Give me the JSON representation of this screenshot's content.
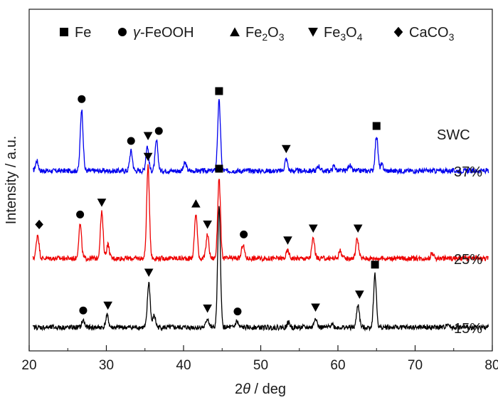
{
  "chart_data": {
    "type": "line",
    "title": "",
    "xlabel": "2θ / deg",
    "ylabel": "Intensity / a.u.",
    "xlim": [
      20,
      80
    ],
    "xticks": [
      "20",
      "30",
      "40",
      "50",
      "60",
      "70",
      "80"
    ],
    "grid": false,
    "legend_position": "top",
    "legend": [
      {
        "marker": "square",
        "label": "Fe"
      },
      {
        "marker": "circle",
        "label": "γ-FeOOH"
      },
      {
        "marker": "triangle-up",
        "label": "Fe2O3"
      },
      {
        "marker": "triangle-down",
        "label": "Fe3O4"
      },
      {
        "marker": "diamond",
        "label": "CaCO3"
      }
    ],
    "annotation": "SWC",
    "series": [
      {
        "name": "37%",
        "color": "#0000ee",
        "baseline": 0,
        "peaks": [
          [
            21.0,
            0.1
          ],
          [
            26.8,
            0.62
          ],
          [
            33.2,
            0.2
          ],
          [
            35.3,
            0.25
          ],
          [
            36.5,
            0.3
          ],
          [
            40.2,
            0.08
          ],
          [
            44.6,
            0.7
          ],
          [
            53.3,
            0.12
          ],
          [
            57.5,
            0.05
          ],
          [
            59.5,
            0.05
          ],
          [
            61.5,
            0.06
          ],
          [
            65.0,
            0.35
          ],
          [
            65.7,
            0.06
          ]
        ]
      },
      {
        "name": "25%",
        "color": "#ee0000",
        "baseline": 0,
        "peaks": [
          [
            21.1,
            0.24
          ],
          [
            26.6,
            0.34
          ],
          [
            29.4,
            0.46
          ],
          [
            30.2,
            0.14
          ],
          [
            35.4,
            0.92
          ],
          [
            41.6,
            0.45
          ],
          [
            43.1,
            0.24
          ],
          [
            44.6,
            0.8
          ],
          [
            47.7,
            0.14
          ],
          [
            53.5,
            0.08
          ],
          [
            56.8,
            0.2
          ],
          [
            60.3,
            0.08
          ],
          [
            62.5,
            0.2
          ],
          [
            72.2,
            0.05
          ]
        ]
      },
      {
        "name": "15%",
        "color": "#000000",
        "baseline": 0,
        "peaks": [
          [
            27.0,
            0.07
          ],
          [
            30.1,
            0.12
          ],
          [
            35.5,
            0.45
          ],
          [
            36.2,
            0.12
          ],
          [
            43.1,
            0.09
          ],
          [
            44.6,
            1.2
          ],
          [
            46.9,
            0.06
          ],
          [
            53.6,
            0.05
          ],
          [
            57.1,
            0.1
          ],
          [
            59.2,
            0.04
          ],
          [
            62.6,
            0.23
          ],
          [
            64.8,
            0.53
          ],
          [
            74.2,
            0.04
          ]
        ]
      }
    ],
    "phase_markers": [
      {
        "marker": "circle",
        "x": 26.8,
        "series": "37%"
      },
      {
        "marker": "circle",
        "x": 33.2,
        "series": "37%"
      },
      {
        "marker": "triangle-down",
        "x": 35.4,
        "series": "37%"
      },
      {
        "marker": "circle",
        "x": 36.8,
        "series": "37%"
      },
      {
        "marker": "square",
        "x": 44.6,
        "series": "37%"
      },
      {
        "marker": "triangle-down",
        "x": 53.3,
        "series": "37%"
      },
      {
        "marker": "square",
        "x": 65.0,
        "series": "37%"
      },
      {
        "marker": "triangle-down",
        "x": 35.4,
        "series": "25%"
      },
      {
        "marker": "diamond",
        "x": 21.3,
        "series": "25%"
      },
      {
        "marker": "circle",
        "x": 26.6,
        "series": "25%"
      },
      {
        "marker": "triangle-down",
        "x": 29.4,
        "series": "25%"
      },
      {
        "marker": "triangle-up",
        "x": 41.6,
        "series": "25%"
      },
      {
        "marker": "triangle-down",
        "x": 43.1,
        "series": "25%"
      },
      {
        "marker": "square",
        "x": 44.6,
        "series": "25%"
      },
      {
        "marker": "circle",
        "x": 47.8,
        "series": "25%"
      },
      {
        "marker": "triangle-down",
        "x": 53.5,
        "series": "25%"
      },
      {
        "marker": "triangle-down",
        "x": 56.8,
        "series": "25%"
      },
      {
        "marker": "triangle-down",
        "x": 62.6,
        "series": "25%"
      },
      {
        "marker": "circle",
        "x": 27.0,
        "series": "15%"
      },
      {
        "marker": "triangle-down",
        "x": 30.2,
        "series": "15%"
      },
      {
        "marker": "triangle-down",
        "x": 35.5,
        "series": "15%"
      },
      {
        "marker": "triangle-down",
        "x": 43.1,
        "series": "15%"
      },
      {
        "marker": "circle",
        "x": 47.0,
        "series": "15%"
      },
      {
        "marker": "triangle-down",
        "x": 57.1,
        "series": "15%"
      },
      {
        "marker": "triangle-down",
        "x": 62.8,
        "series": "15%"
      },
      {
        "marker": "square",
        "x": 64.8,
        "series": "15%"
      }
    ]
  }
}
